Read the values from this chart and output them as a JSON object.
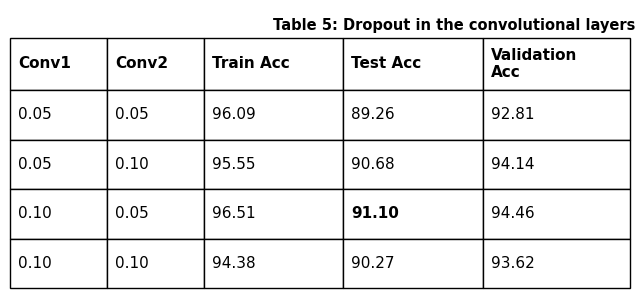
{
  "title": "Table 5: Dropout in the convolutional layers",
  "title_fontsize": 10.5,
  "title_fontweight": "bold",
  "columns": [
    "Conv1",
    "Conv2",
    "Train Acc",
    "Test Acc",
    "Validation\nAcc"
  ],
  "rows": [
    [
      "0.05",
      "0.05",
      "96.09",
      "89.26",
      "92.81"
    ],
    [
      "0.05",
      "0.10",
      "95.55",
      "90.68",
      "94.14"
    ],
    [
      "0.10",
      "0.05",
      "96.51",
      "91.10",
      "94.46"
    ],
    [
      "0.10",
      "0.10",
      "94.38",
      "90.27",
      "93.62"
    ]
  ],
  "bold_cells": [
    [
      2,
      3
    ]
  ],
  "background_color": "#ffffff",
  "table_edge_color": "#000000",
  "header_fontweight": "bold",
  "cell_fontweight": "normal",
  "cell_fontsize": 11
}
